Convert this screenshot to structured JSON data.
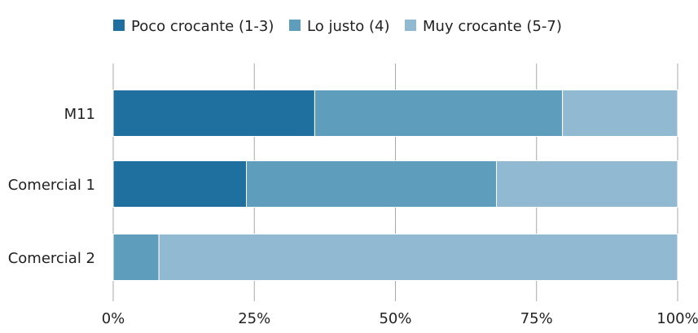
{
  "chart_data": {
    "type": "bar",
    "orientation": "horizontal",
    "stacked": true,
    "percent": true,
    "categories": [
      "M11",
      "Comercial 1",
      "Comercial 2"
    ],
    "series": [
      {
        "name": "Poco crocante (1-3)",
        "color": "#1f6f9f",
        "values": [
          35.7,
          23.6,
          0
        ]
      },
      {
        "name": "Lo justo (4)",
        "color": "#5f9dbd",
        "values": [
          43.9,
          44.3,
          8.1
        ]
      },
      {
        "name": "Muy crocante (5-7)",
        "color": "#92b9d2",
        "values": [
          20.4,
          32.1,
          91.9
        ]
      }
    ],
    "xlim": [
      0,
      100
    ],
    "xticks": [
      "0%",
      "25%",
      "50%",
      "75%",
      "100%"
    ],
    "grid": "vertical",
    "legend_position": "top",
    "title": "",
    "xlabel": "",
    "ylabel": ""
  }
}
